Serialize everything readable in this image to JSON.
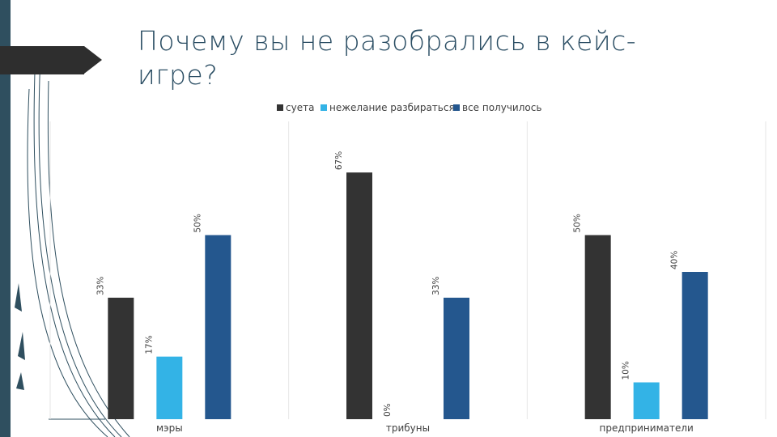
{
  "slide": {
    "title": "Почему вы не разобрались в кейс-игре?"
  },
  "colors": {
    "band": "#2f4f5f",
    "accent_tab": "#2e2e2e",
    "title": "#2a4d63"
  },
  "chart_data": {
    "type": "bar",
    "title": "",
    "xlabel": "",
    "ylabel": "",
    "categories": [
      "мэры",
      "трибуны",
      "предприниматели"
    ],
    "series": [
      {
        "name": "суета",
        "color": "#333333",
        "values": [
          33,
          67,
          50
        ],
        "labels": [
          "33%",
          "67%",
          "50%"
        ]
      },
      {
        "name": "нежелание разбираться",
        "color": "#33b3e6",
        "values": [
          17,
          0,
          10
        ],
        "labels": [
          "17%",
          "0%",
          "10%"
        ]
      },
      {
        "name": "все получилось",
        "color": "#24578e",
        "values": [
          50,
          33,
          40
        ],
        "labels": [
          "50%",
          "33%",
          "40%"
        ]
      }
    ],
    "ylim": [
      0,
      80
    ],
    "grid": false,
    "legend_position": "top",
    "data_label_orientation": "rotated-vertical"
  }
}
